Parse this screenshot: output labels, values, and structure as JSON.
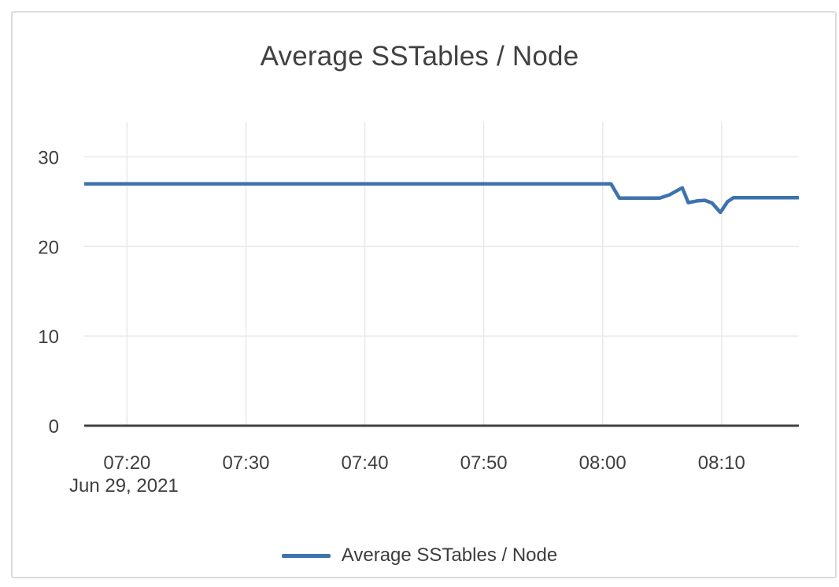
{
  "page": {
    "background": "#ffffff"
  },
  "card": {
    "border_color": "#dcdcdc",
    "background": "#ffffff"
  },
  "chart_data": {
    "type": "line",
    "title": "Average SSTables / Node",
    "title_color": "#414141",
    "x_axis": {
      "date_label": "Jun 29, 2021",
      "tick_labels": [
        "07:20",
        "07:30",
        "07:40",
        "07:50",
        "08:00",
        "08:10"
      ],
      "tick_minutes_after_0700": [
        20,
        30,
        40,
        50,
        60,
        70
      ],
      "domain_minutes_after_0700": [
        16.4,
        76.5
      ]
    },
    "y_axis": {
      "tick_labels": [
        "0",
        "10",
        "20",
        "30"
      ],
      "tick_values": [
        0,
        10,
        20,
        30
      ],
      "range": [
        0,
        33.9
      ]
    },
    "grid": {
      "show": true,
      "color": "#e9e9e9"
    },
    "axis_line_color": "#404040",
    "tick_label_color": "#3f3f3f",
    "series": [
      {
        "name": "Average SSTables / Node",
        "color": "#3d73ae",
        "points_minutes_value": [
          [
            16.4,
            27.0
          ],
          [
            60.7,
            27.0
          ],
          [
            61.4,
            25.4
          ],
          [
            64.8,
            25.4
          ],
          [
            65.6,
            25.75
          ],
          [
            66.2,
            26.2
          ],
          [
            66.7,
            26.55
          ],
          [
            67.2,
            24.9
          ],
          [
            68.0,
            25.1
          ],
          [
            68.6,
            25.15
          ],
          [
            69.2,
            24.85
          ],
          [
            69.9,
            23.8
          ],
          [
            70.5,
            25.0
          ],
          [
            71.0,
            25.45
          ],
          [
            76.5,
            25.45
          ]
        ]
      }
    ],
    "legend": {
      "position": "bottom",
      "label": "Average SSTables / Node",
      "swatch_color": "#3d73ae"
    }
  }
}
